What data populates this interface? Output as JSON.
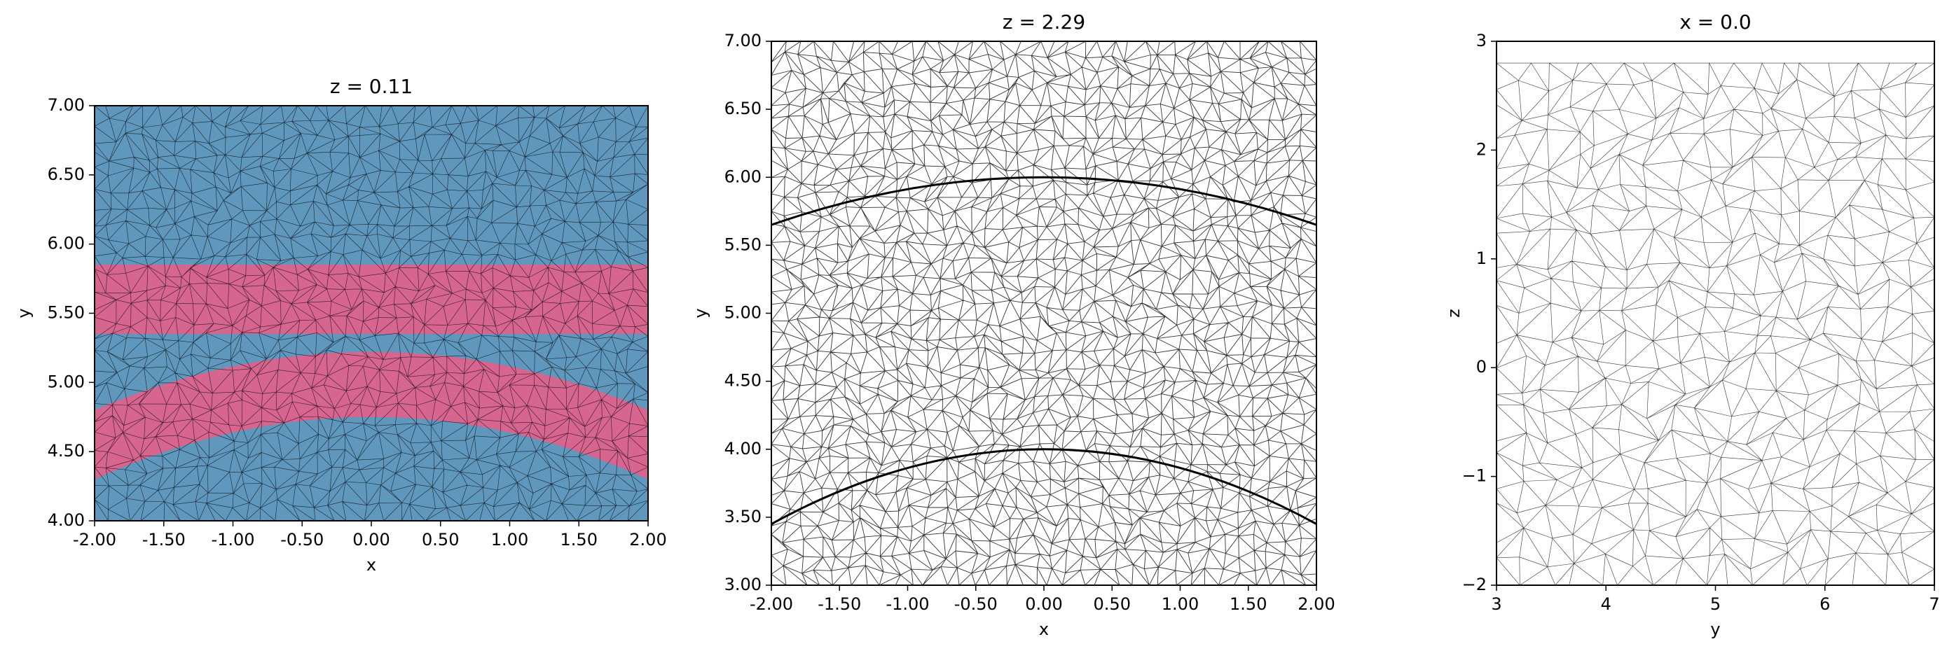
{
  "chart_data": [
    {
      "type": "mesh",
      "title": "z = 0.11",
      "xlabel": "x",
      "ylabel": "y",
      "xlim": [
        -2,
        2
      ],
      "ylim": [
        4,
        7
      ],
      "xticks": [
        {
          "value": -2,
          "label": "-2.00"
        },
        {
          "value": -1.5,
          "label": "-1.50"
        },
        {
          "value": -1,
          "label": "-1.00"
        },
        {
          "value": -0.5,
          "label": "-0.50"
        },
        {
          "value": 0,
          "label": "0.00"
        },
        {
          "value": 0.5,
          "label": "0.50"
        },
        {
          "value": 1,
          "label": "1.00"
        },
        {
          "value": 1.5,
          "label": "1.50"
        },
        {
          "value": 2,
          "label": "2.00"
        }
      ],
      "yticks": [
        {
          "value": 4,
          "label": "4.00"
        },
        {
          "value": 4.5,
          "label": "4.50"
        },
        {
          "value": 5,
          "label": "5.00"
        },
        {
          "value": 5.5,
          "label": "5.50"
        },
        {
          "value": 6,
          "label": "6.00"
        },
        {
          "value": 6.5,
          "label": "6.50"
        },
        {
          "value": 7,
          "label": "7.00"
        }
      ]
    },
    {
      "type": "mesh",
      "title": "z = 2.29",
      "xlabel": "x",
      "ylabel": "y",
      "xlim": [
        -2,
        2
      ],
      "ylim": [
        3,
        7
      ],
      "xticks": [
        {
          "value": -2,
          "label": "-2.00"
        },
        {
          "value": -1.5,
          "label": "-1.50"
        },
        {
          "value": -1,
          "label": "-1.00"
        },
        {
          "value": -0.5,
          "label": "-0.50"
        },
        {
          "value": 0,
          "label": "0.00"
        },
        {
          "value": 0.5,
          "label": "0.50"
        },
        {
          "value": 1,
          "label": "1.00"
        },
        {
          "value": 1.5,
          "label": "1.50"
        },
        {
          "value": 2,
          "label": "2.00"
        }
      ],
      "yticks": [
        {
          "value": 3,
          "label": "3.00"
        },
        {
          "value": 3.5,
          "label": "3.50"
        },
        {
          "value": 4,
          "label": "4.00"
        },
        {
          "value": 4.5,
          "label": "4.50"
        },
        {
          "value": 5,
          "label": "5.00"
        },
        {
          "value": 5.5,
          "label": "5.50"
        },
        {
          "value": 6,
          "label": "6.00"
        },
        {
          "value": 6.5,
          "label": "6.50"
        },
        {
          "value": 7,
          "label": "7.00"
        }
      ]
    },
    {
      "type": "mesh",
      "title": "x = 0.0",
      "xlabel": "y",
      "ylabel": "z",
      "xlim": [
        3,
        7
      ],
      "ylim": [
        -2,
        3
      ],
      "xticks": [
        3,
        4,
        5,
        6,
        7
      ],
      "yticks": [
        {
          "value": -2,
          "label": "−2"
        },
        {
          "value": -1,
          "label": "−1"
        },
        0,
        1,
        2,
        3
      ]
    }
  ]
}
